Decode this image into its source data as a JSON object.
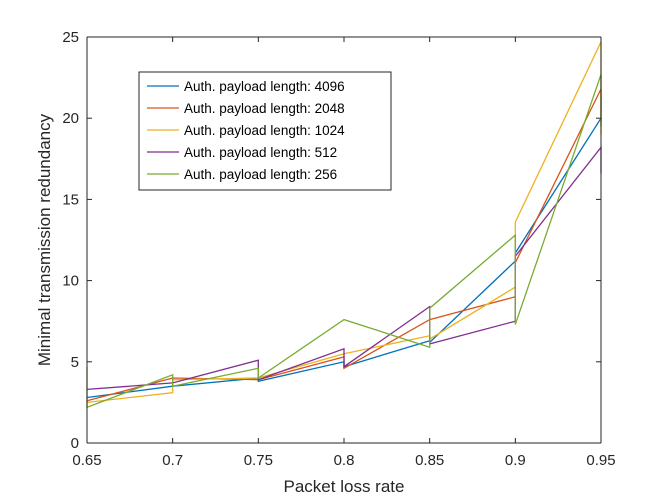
{
  "chart_data": {
    "type": "line",
    "title": "",
    "xlabel": "Packet loss rate",
    "ylabel": "Minimal transmission redundancy",
    "xlim": [
      0.65,
      0.95
    ],
    "ylim": [
      0,
      25
    ],
    "xticks": [
      "0.65",
      "0.7",
      "0.75",
      "0.8",
      "0.85",
      "0.9",
      "0.95"
    ],
    "yticks": [
      "0",
      "5",
      "10",
      "15",
      "20",
      "25"
    ],
    "grid": false,
    "legend_position": "top-left",
    "series": [
      {
        "name": "Auth. payload length: 4096",
        "color": "#0072BD",
        "points": [
          [
            0.65,
            2.8
          ],
          [
            0.7,
            3.5
          ],
          [
            0.75,
            4.0
          ],
          [
            0.75,
            3.8
          ],
          [
            0.8,
            5.0
          ],
          [
            0.8,
            4.7
          ],
          [
            0.85,
            6.3
          ],
          [
            0.85,
            6.2
          ],
          [
            0.9,
            11.2
          ],
          [
            0.9,
            11.7
          ],
          [
            0.95,
            20.0
          ]
        ]
      },
      {
        "name": "Auth. payload length: 2048",
        "color": "#D95319",
        "points": [
          [
            0.65,
            2.6
          ],
          [
            0.7,
            4.0
          ],
          [
            0.75,
            3.9
          ],
          [
            0.8,
            5.3
          ],
          [
            0.8,
            4.6
          ],
          [
            0.85,
            7.6
          ],
          [
            0.9,
            9.0
          ],
          [
            0.9,
            11.1
          ],
          [
            0.95,
            21.8
          ],
          [
            0.95,
            19.5
          ]
        ]
      },
      {
        "name": "Auth. payload length: 1024",
        "color": "#EDB120",
        "points": [
          [
            0.65,
            2.5
          ],
          [
            0.7,
            3.1
          ],
          [
            0.7,
            3.9
          ],
          [
            0.75,
            4.0
          ],
          [
            0.8,
            5.5
          ],
          [
            0.85,
            6.6
          ],
          [
            0.85,
            6.4
          ],
          [
            0.9,
            9.6
          ],
          [
            0.9,
            13.6
          ],
          [
            0.95,
            24.7
          ],
          [
            0.95,
            19.0
          ]
        ]
      },
      {
        "name": "Auth. payload length: 512",
        "color": "#7E2F8E",
        "points": [
          [
            0.65,
            3.3
          ],
          [
            0.7,
            3.7
          ],
          [
            0.75,
            5.1
          ],
          [
            0.75,
            3.9
          ],
          [
            0.8,
            5.8
          ],
          [
            0.8,
            4.7
          ],
          [
            0.85,
            8.4
          ],
          [
            0.85,
            6.1
          ],
          [
            0.9,
            7.5
          ],
          [
            0.9,
            11.5
          ],
          [
            0.95,
            18.2
          ],
          [
            0.95,
            16.6
          ]
        ]
      },
      {
        "name": "Auth. payload length: 256",
        "color": "#77AC30",
        "points": [
          [
            0.65,
            4.7
          ],
          [
            0.65,
            2.2
          ],
          [
            0.7,
            4.2
          ],
          [
            0.7,
            3.5
          ],
          [
            0.75,
            4.6
          ],
          [
            0.75,
            4.0
          ],
          [
            0.8,
            7.6
          ],
          [
            0.85,
            5.9
          ],
          [
            0.85,
            8.3
          ],
          [
            0.9,
            12.8
          ],
          [
            0.9,
            7.3
          ],
          [
            0.95,
            22.7
          ],
          [
            0.95,
            19.8
          ]
        ]
      }
    ]
  }
}
